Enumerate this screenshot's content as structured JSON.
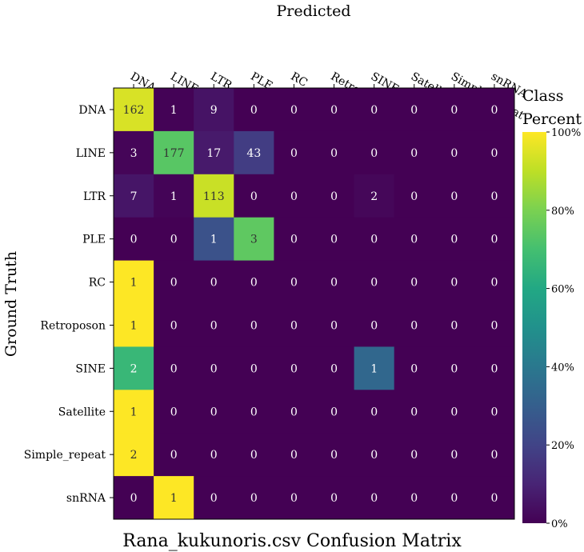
{
  "chart_data": {
    "type": "heatmap",
    "title": "Rana_kukunoris.csv Confusion Matrix",
    "xlabel": "Predicted",
    "ylabel": "Ground Truth",
    "x_categories": [
      "DNA",
      "LINE",
      "LTR",
      "PLE",
      "RC",
      "Retroposon",
      "SINE",
      "Satellite",
      "Simple_repeat",
      "snRNA"
    ],
    "y_categories": [
      "DNA",
      "LINE",
      "LTR",
      "PLE",
      "RC",
      "Retroposon",
      "SINE",
      "Satellite",
      "Simple_repeat",
      "snRNA"
    ],
    "values": [
      [
        162,
        1,
        9,
        0,
        0,
        0,
        0,
        0,
        0,
        0
      ],
      [
        3,
        177,
        17,
        43,
        0,
        0,
        0,
        0,
        0,
        0
      ],
      [
        7,
        1,
        113,
        0,
        0,
        0,
        2,
        0,
        0,
        0
      ],
      [
        0,
        0,
        1,
        3,
        0,
        0,
        0,
        0,
        0,
        0
      ],
      [
        1,
        0,
        0,
        0,
        0,
        0,
        0,
        0,
        0,
        0
      ],
      [
        1,
        0,
        0,
        0,
        0,
        0,
        0,
        0,
        0,
        0
      ],
      [
        2,
        0,
        0,
        0,
        0,
        0,
        1,
        0,
        0,
        0
      ],
      [
        1,
        0,
        0,
        0,
        0,
        0,
        0,
        0,
        0,
        0
      ],
      [
        2,
        0,
        0,
        0,
        0,
        0,
        0,
        0,
        0,
        0
      ],
      [
        0,
        1,
        0,
        0,
        0,
        0,
        0,
        0,
        0,
        0
      ]
    ],
    "color_normalization": "row percent",
    "colormap": "viridis",
    "colorbar": {
      "title": "Class Percent",
      "range": [
        0,
        100
      ],
      "ticks": [
        "0%",
        "20%",
        "40%",
        "60%",
        "80%",
        "100%"
      ]
    },
    "x_axis_position": "top",
    "grid": false
  }
}
